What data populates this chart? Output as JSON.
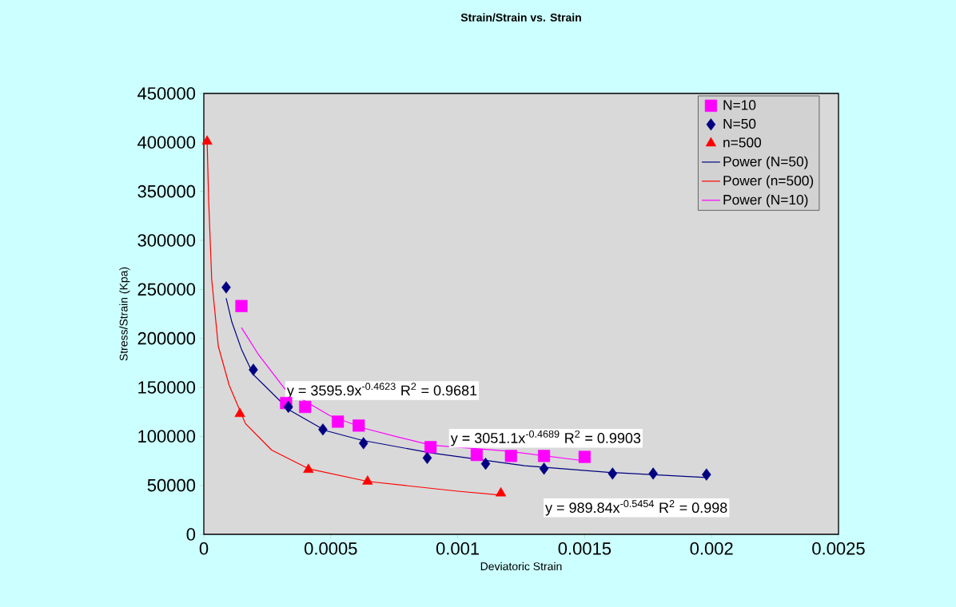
{
  "chart_data": {
    "type": "scatter",
    "title": "Strain/Strain vs. Strain",
    "xlabel": "Deviatoric Strain",
    "ylabel": "Stress/Strain (Kpa)",
    "xlim": [
      0,
      0.0025
    ],
    "ylim": [
      0,
      450000
    ],
    "xticks": [
      0,
      0.0005,
      0.001,
      0.0015,
      0.002,
      0.0025
    ],
    "yticks": [
      0,
      50000,
      100000,
      150000,
      200000,
      250000,
      300000,
      350000,
      400000,
      450000
    ],
    "legend": "top right",
    "series": [
      {
        "name": "N=10",
        "color": "#ff00ff",
        "marker": "square",
        "x": [
          0.000148,
          0.000324,
          0.000399,
          0.000528,
          0.00061,
          0.000893,
          0.001075,
          0.00121,
          0.00134,
          0.0015
        ],
        "values": [
          233000,
          134000,
          130000,
          115000,
          111000,
          89000,
          81000,
          80000,
          80000,
          79000
        ]
      },
      {
        "name": "N=50",
        "color": "#000080",
        "marker": "diamond",
        "x": [
          8.8e-05,
          0.000195,
          0.000333,
          0.000469,
          0.000629,
          0.00088,
          0.00111,
          0.00134,
          0.00161,
          0.00177,
          0.00198
        ],
        "values": [
          252000,
          168000,
          130000,
          107000,
          93000,
          78000,
          72000,
          67000,
          62000,
          62000,
          61000
        ]
      },
      {
        "name": "n=500",
        "color": "#ff0000",
        "marker": "triangle",
        "x": [
          1.3e-05,
          0.000142,
          0.000412,
          0.000645,
          0.00117
        ],
        "values": [
          401000,
          123000,
          66000,
          54000,
          42000
        ]
      },
      {
        "name": "Power (N=50)",
        "type": "line",
        "color": "#000080",
        "marker": "none",
        "line_style": "solid",
        "x": [
          8.8e-05,
          0.00011,
          0.000148,
          0.000195,
          0.000336,
          0.000478,
          0.000623,
          0.000896,
          0.001264,
          0.00161,
          0.00198
        ],
        "values": [
          241000,
          217000,
          189000,
          163000,
          127000,
          106000,
          96000,
          83000,
          70000,
          63000,
          58000
        ]
      },
      {
        "name": "Power (n=500)",
        "type": "line",
        "color": "#ff0000",
        "marker": "none",
        "line_style": "solid",
        "x": [
          1.3e-05,
          1.9e-05,
          3.1e-05,
          5.7e-05,
          0.0001,
          0.000164,
          0.000267,
          0.000412,
          0.000645,
          0.001,
          0.00117
        ],
        "values": [
          400000,
          341000,
          260000,
          192000,
          152000,
          113000,
          86000,
          67000,
          54000,
          44000,
          40000
        ]
      },
      {
        "name": "Power (N=10)",
        "type": "line",
        "color": "#ff00ff",
        "marker": "none",
        "line_style": "solid",
        "x": [
          0.000148,
          0.000214,
          0.00032,
          0.000497,
          0.000635,
          0.00077,
          0.000896,
          0.00119,
          0.0015
        ],
        "values": [
          211000,
          184000,
          148000,
          121000,
          108000,
          99000,
          91000,
          85000,
          75000
        ]
      }
    ],
    "annotations": [
      "y = 3595.9x$^{-0.4623}$  R$^{2}$ = 0.9681",
      "y = 3051.1x$^{-0.4689}$  R$^{2}$ = 0.9903",
      "y = 989.84x$^{-0.5454}$  R$^{2}$ = 0.998"
    ]
  }
}
